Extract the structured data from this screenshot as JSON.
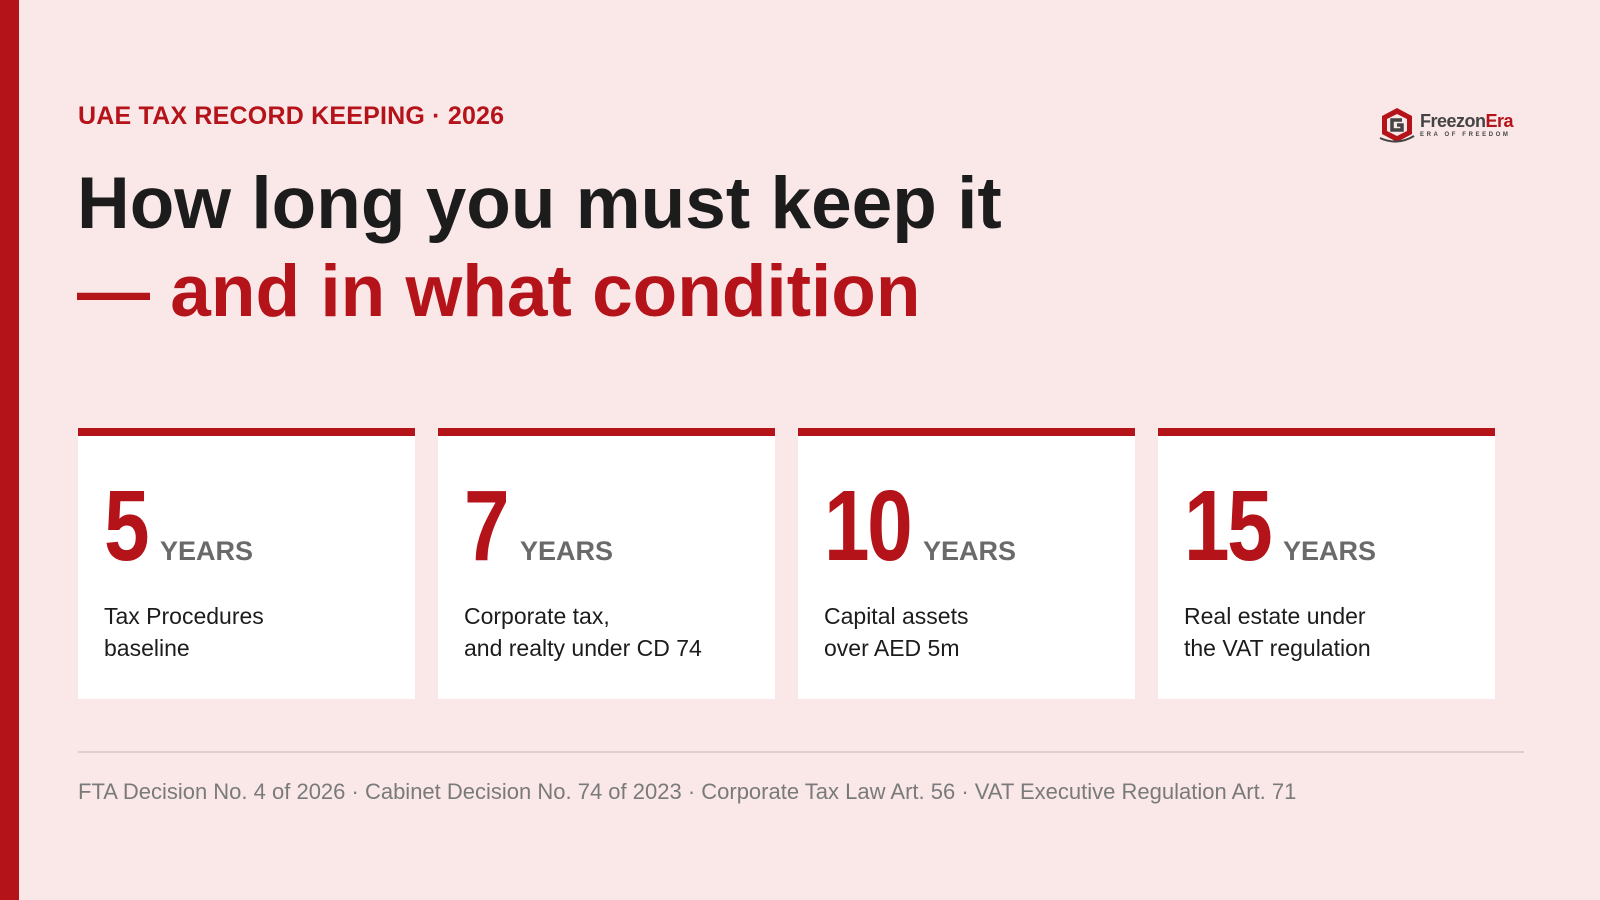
{
  "eyebrow": "UAE TAX RECORD KEEPING · 2026",
  "headline": {
    "line1": "How long you must keep it",
    "line2": "— and in what condition"
  },
  "logo": {
    "name_part1": "Freezon",
    "name_part2": "Era",
    "tagline": "ERA OF FREEDOM"
  },
  "colors": {
    "accent": "#b5131a",
    "background": "#fae8e9",
    "card": "#ffffff",
    "text": "#1c1c1c",
    "muted": "#7a7a7a"
  },
  "cards": [
    {
      "number": "5",
      "unit": "YEARS",
      "desc_line1": "Tax Procedures",
      "desc_line2": "baseline"
    },
    {
      "number": "7",
      "unit": "YEARS",
      "desc_line1": "Corporate tax,",
      "desc_line2": "and realty under CD 74"
    },
    {
      "number": "10",
      "unit": "YEARS",
      "desc_line1": "Capital assets",
      "desc_line2": "over AED 5m"
    },
    {
      "number": "15",
      "unit": "YEARS",
      "desc_line1": "Real estate under",
      "desc_line2": "the VAT regulation"
    }
  ],
  "sources": "FTA Decision No. 4 of 2026 · Cabinet Decision No. 74 of 2023 · Corporate Tax Law Art. 56 · VAT Executive Regulation Art. 71"
}
